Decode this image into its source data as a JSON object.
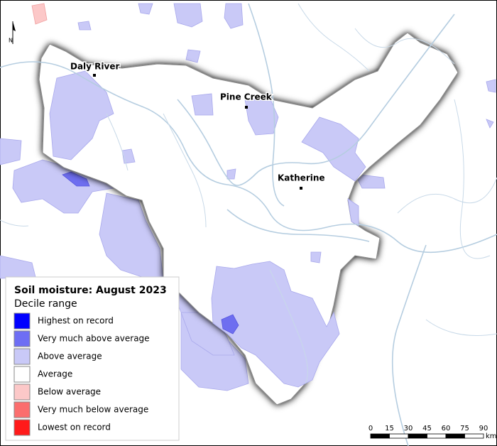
{
  "map": {
    "north_label": "N",
    "places": [
      {
        "name": "Daly River"
      },
      {
        "name": "Pine Creek"
      },
      {
        "name": "Katherine"
      }
    ]
  },
  "legend": {
    "title": "Soil moisture: August 2023",
    "subtitle": "Decile range",
    "items": [
      {
        "label": "Highest on record",
        "color": "#0000ff"
      },
      {
        "label": "Very much above average",
        "color": "#6e6ef4"
      },
      {
        "label": "Above average",
        "color": "#c9c9f7"
      },
      {
        "label": "Average",
        "color": "#ffffff"
      },
      {
        "label": "Below average",
        "color": "#fcc8c8"
      },
      {
        "label": "Very much below average",
        "color": "#fb6e6e"
      },
      {
        "label": "Lowest on record",
        "color": "#ff1a1a"
      }
    ]
  },
  "scale_bar": {
    "ticks": [
      0,
      15,
      30,
      45,
      60,
      75,
      90
    ],
    "unit": "km"
  }
}
